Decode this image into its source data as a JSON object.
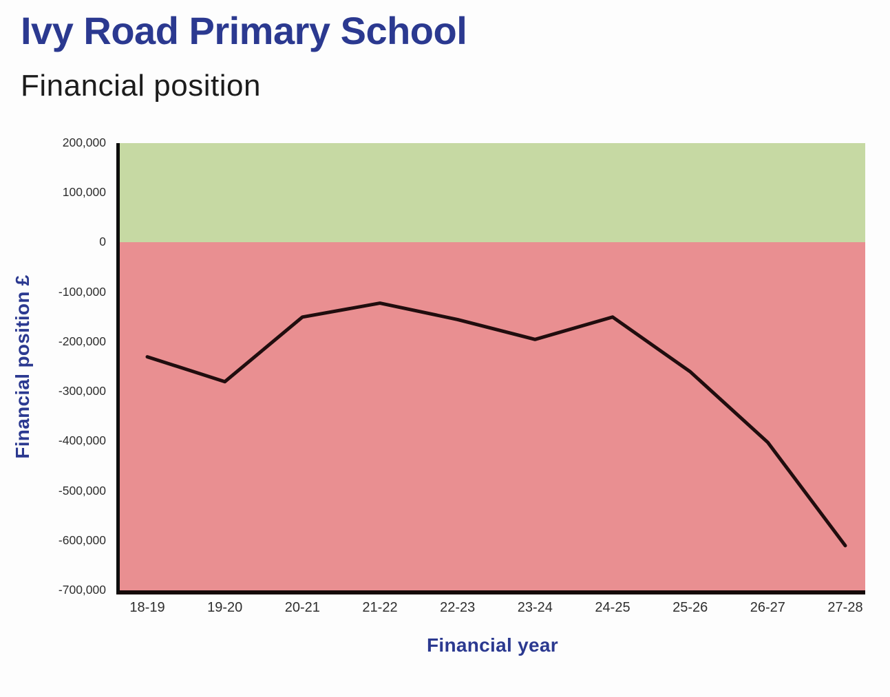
{
  "chart_data": {
    "type": "line",
    "title": "Ivy Road Primary School",
    "subtitle": "Financial position",
    "xlabel": "Financial year",
    "ylabel": "Financial position £",
    "categories": [
      "18-19",
      "19-20",
      "20-21",
      "21-22",
      "22-23",
      "23-24",
      "24-25",
      "25-26",
      "26-27",
      "27-28"
    ],
    "series": [
      {
        "name": "Financial position",
        "values": [
          -230000,
          -280000,
          -150000,
          -122000,
          -155000,
          -195000,
          -150000,
          -260000,
          -402000,
          -610000
        ]
      }
    ],
    "ylim": [
      -700000,
      200000
    ],
    "y_tick_values": [
      200000,
      100000,
      0,
      -100000,
      -200000,
      -300000,
      -400000,
      -500000,
      -600000,
      -700000
    ],
    "y_tick_labels": [
      "200,000",
      "100,000",
      "0",
      "-100,000",
      "-200,000",
      "-300,000",
      "-400,000",
      "-500,000",
      "-600,000",
      "-700,000"
    ],
    "grid": false,
    "legend": "none",
    "bands": [
      {
        "name": "surplus-zone",
        "from": 0,
        "to": 200000,
        "color": "#c6d9a3"
      },
      {
        "name": "deficit-zone",
        "from": -700000,
        "to": 0,
        "color": "#e98f91"
      }
    ],
    "line_color": "#200d0e",
    "axis_color": "#0d0d0d",
    "title_color": "#2b3990",
    "tick_color": "#2e2e2e"
  }
}
